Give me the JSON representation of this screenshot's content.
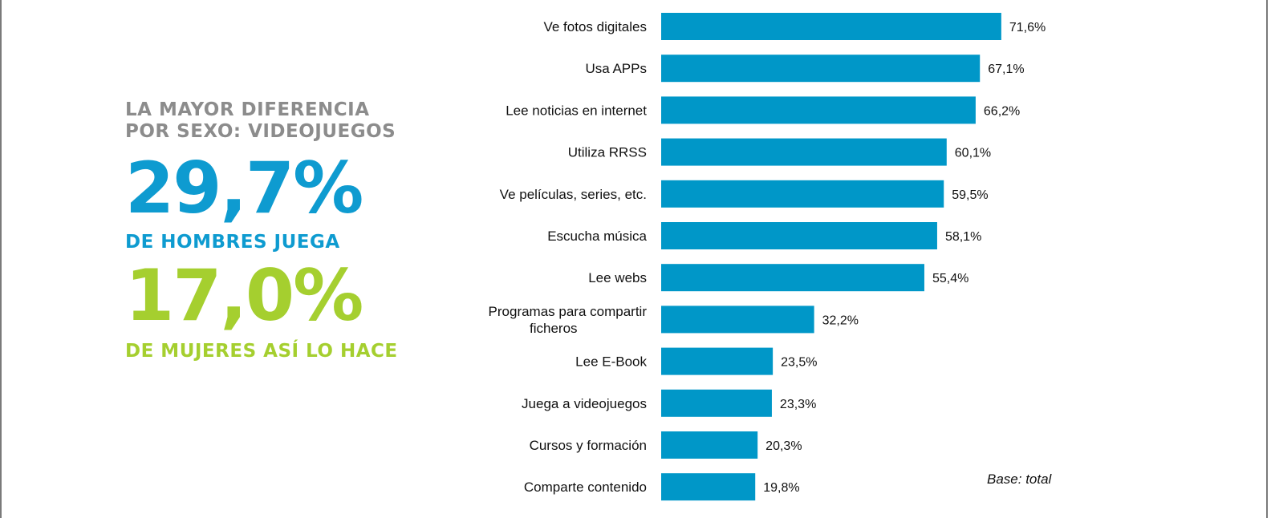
{
  "infographic": {
    "headline_line1": "LA MAYOR DIFERENCIA",
    "headline_line2": "POR SEXO: VIDEOJUEGOS",
    "men_percent": "29,7%",
    "men_caption": "DE HOMBRES JUEGA",
    "women_percent": "17,0%",
    "women_caption": "DE MUJERES ASÍ LO HACE",
    "colors": {
      "headline": "#8c8c8c",
      "men": "#0e9bd0",
      "women": "#a5cf2f"
    }
  },
  "chart_data": {
    "type": "bar",
    "orientation": "horizontal",
    "categories": [
      [
        "Ve fotos digitales"
      ],
      [
        "Usa APPs"
      ],
      [
        "Lee noticias en internet"
      ],
      [
        "Utiliza RRSS"
      ],
      [
        "Ve películas, series, etc."
      ],
      [
        "Escucha música"
      ],
      [
        "Lee webs"
      ],
      [
        "Programas para compartir",
        "ficheros"
      ],
      [
        "Lee E-Book"
      ],
      [
        "Juega a videojuegos"
      ],
      [
        "Cursos y formación"
      ],
      [
        "Comparte contenido"
      ]
    ],
    "values": [
      71.6,
      67.1,
      66.2,
      60.1,
      59.5,
      58.1,
      55.4,
      32.2,
      23.5,
      23.3,
      20.3,
      19.8
    ],
    "value_labels": [
      "71,6%",
      "67,1%",
      "66,2%",
      "60,1%",
      "59,5%",
      "58,1%",
      "55,4%",
      "32,2%",
      "23,5%",
      "23,3%",
      "20,3%",
      "19,8%"
    ],
    "title": "",
    "xlabel": "",
    "ylabel": "",
    "xlim": [
      0,
      100
    ],
    "grid": false,
    "bar_color": "#0097c8",
    "note": "Base: total"
  }
}
